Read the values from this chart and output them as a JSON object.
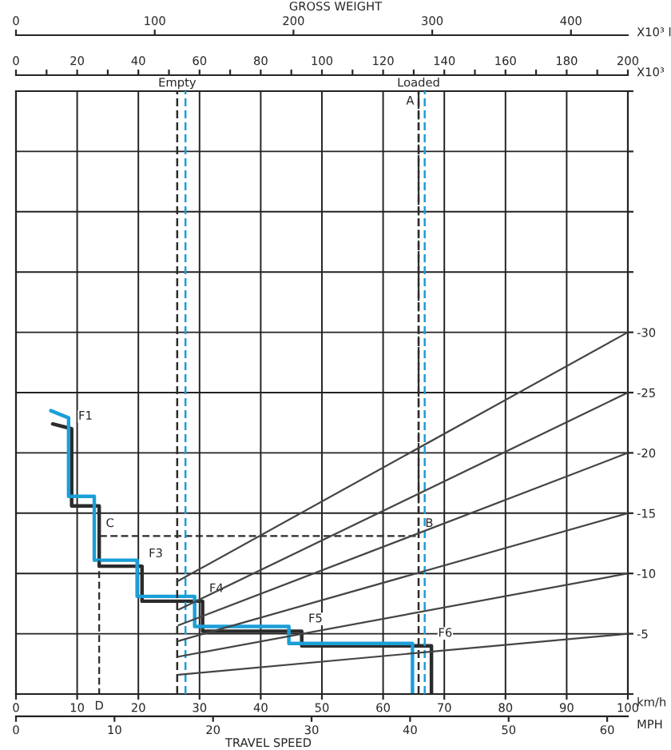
{
  "chart_data": [
    {
      "type": "line",
      "xlim": [
        0,
        100
      ],
      "xticks": [
        0,
        10,
        20,
        30,
        40,
        50,
        60,
        70,
        80,
        90,
        100
      ],
      "x2lim": [
        0,
        200
      ],
      "x2label": "X10³",
      "x2ticks": [
        0,
        {
          "value": 10,
          "label": null
        },
        20,
        {
          "value": 30,
          "label": null
        },
        40,
        {
          "value": 50,
          "label": null
        },
        60,
        {
          "value": 70,
          "label": null
        },
        80,
        {
          "value": 90,
          "label": null
        },
        100,
        {
          "value": 110,
          "label": null
        },
        120,
        {
          "value": 130,
          "label": null
        },
        140,
        {
          "value": 150,
          "label": null
        },
        160,
        {
          "value": 170,
          "label": null
        },
        180,
        {
          "value": 190,
          "label": null
        },
        200
      ],
      "ylim": [
        0,
        -50
      ],
      "yticks": [
        {
          "value": 0,
          "label": null
        },
        -5,
        -10,
        -15,
        -20,
        -25,
        -30,
        {
          "value": -35,
          "label": null
        },
        {
          "value": -40,
          "label": null
        },
        {
          "value": -45,
          "label": null
        },
        {
          "value": -50,
          "label": null
        }
      ],
      "grid": true,
      "series": [
        {
          "color": "#2b2b2b",
          "line_style": "solid",
          "x": [
            6.0,
            9.1,
            9.1,
            13.6,
            13.6,
            20.6,
            20.6,
            30.5,
            30.5,
            46.7,
            46.7,
            67.9,
            67.9
          ],
          "values": [
            -22.4,
            -22.0,
            -15.6,
            -15.6,
            -10.6,
            -10.6,
            -7.7,
            -7.7,
            -5.2,
            -5.2,
            -4.0,
            -4.0,
            0
          ]
        },
        {
          "color": "#1a9fd8",
          "line_style": "solid",
          "x": [
            5.7,
            8.6,
            8.6,
            12.8,
            12.8,
            19.8,
            19.8,
            29.2,
            29.2,
            44.6,
            44.6,
            64.8,
            64.8
          ],
          "values": [
            -23.5,
            -22.9,
            -16.4,
            -16.4,
            -11.1,
            -11.1,
            -8.1,
            -8.1,
            -5.6,
            -5.6,
            -4.2,
            -4.2,
            0
          ]
        },
        {
          "color": "#2b2b2b",
          "line_style": "dashed",
          "x": [
            65.8,
            65.8,
            13.6,
            13.6
          ],
          "values": [
            -50,
            -13.1,
            -13.1,
            0
          ]
        }
      ],
      "ref_lines": [
        {
          "axis": "x2",
          "value": 52.7,
          "label": "Empty",
          "color": "#2b2b2b",
          "line_style": "dashed"
        },
        {
          "axis": "x2",
          "value": 55.4,
          "label": null,
          "color": "#1a9fd8",
          "line_style": "dashed"
        },
        {
          "axis": "x2",
          "value": 131.6,
          "label": "Loaded",
          "color": "#2b2b2b",
          "line_style": "dashed"
        },
        {
          "axis": "x2",
          "value": 133.6,
          "label": null,
          "color": "#1a9fd8",
          "line_style": "dashed"
        }
      ],
      "annotations": [
        {
          "text": "F1",
          "x": 9.1,
          "y": -22.0
        },
        {
          "text": "F3",
          "x": 20.6,
          "y": -10.6
        },
        {
          "text": "F4",
          "x": 30.5,
          "y": -7.7
        },
        {
          "text": "F5",
          "x": 46.7,
          "y": -5.2
        },
        {
          "text": "F6",
          "x": 67.9,
          "y": -4.0
        },
        {
          "text": "C",
          "x": 13.6,
          "y": -13.1
        },
        {
          "text": "B",
          "x": 65.8,
          "y": -13.1
        },
        {
          "text": "A",
          "x": 65.8,
          "y": -50
        },
        {
          "text": "D",
          "x": 13.6,
          "y": 0
        },
        "km/h"
      ]
    },
    {
      "type": "line",
      "title": "GROSS WEIGHT",
      "xlabel": "TRAVEL SPEED",
      "tick_labels": "x",
      "xlim": [
        0,
        62.1
      ],
      "xticks": [
        0,
        10,
        20,
        30,
        40,
        50,
        60
      ],
      "x2lim": [
        0,
        441
      ],
      "x2label": "X10³ l",
      "x2ticks": [
        0,
        100,
        200,
        300,
        400
      ],
      "ylim": [
        0,
        -50
      ],
      "yticks": [
        -5,
        -10,
        -15,
        -20,
        -25,
        -30
      ],
      "series": [
        {
          "color": "#444444",
          "line_style": "solid",
          "x": [
            16.5,
            62.1
          ],
          "values": [
            -9.4,
            -30
          ]
        },
        {
          "color": "#444444",
          "line_style": "solid",
          "x": [
            16.5,
            62.1
          ],
          "values": [
            -7.0,
            -25
          ]
        },
        {
          "color": "#444444",
          "line_style": "solid",
          "x": [
            16.5,
            62.1
          ],
          "values": [
            -5.7,
            -20
          ]
        },
        {
          "color": "#444444",
          "line_style": "solid",
          "x": [
            16.5,
            62.1
          ],
          "values": [
            -4.4,
            -15
          ]
        },
        {
          "color": "#444444",
          "line_style": "solid",
          "x": [
            16.5,
            62.1
          ],
          "values": [
            -3.1,
            -10
          ]
        },
        {
          "color": "#444444",
          "line_style": "solid",
          "x": [
            16.5,
            62.1
          ],
          "values": [
            -1.6,
            -5
          ]
        }
      ],
      "annotations": [
        "MPH"
      ]
    }
  ]
}
